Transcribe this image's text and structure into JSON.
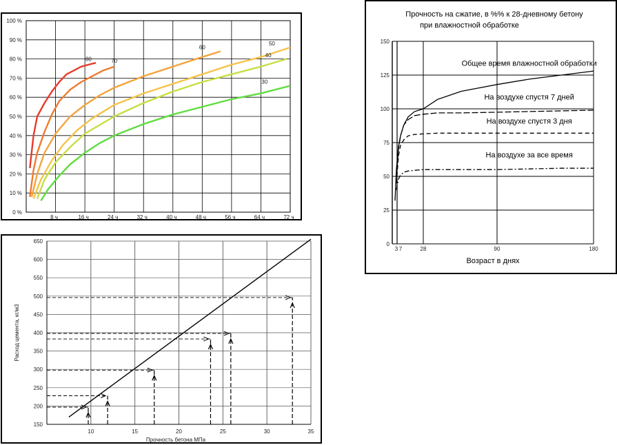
{
  "chart_data": [
    {
      "type": "line",
      "x_unit": "ч",
      "y_unit": "%",
      "xlim": [
        0,
        72
      ],
      "ylim": [
        0,
        100
      ],
      "y_ticks": [
        0,
        10,
        20,
        30,
        40,
        50,
        60,
        70,
        80,
        90,
        100
      ],
      "y_tick_labels": [
        "0 %",
        "10 %",
        "20 %",
        "30 %",
        "40 %",
        "50 %",
        "60 %",
        "70 %",
        "80 %",
        "90 %",
        "100 %"
      ],
      "x_ticks": [
        8,
        16,
        24,
        32,
        40,
        48,
        56,
        64,
        72
      ],
      "x_tick_labels": [
        "8 ч",
        "16 ч",
        "24 ч",
        "32 ч",
        "40 ч",
        "48 ч",
        "56 ч",
        "64 ч",
        "72 ч"
      ],
      "grid": true,
      "series": [
        {
          "name": "80",
          "color": "#e83a2a",
          "x": [
            1,
            2,
            3,
            5,
            7,
            9,
            11,
            13,
            15,
            17,
            19
          ],
          "y": [
            23,
            40,
            50,
            57,
            63,
            68,
            72,
            74,
            76,
            77,
            78
          ],
          "label_at": [
            17,
            79
          ]
        },
        {
          "name": "70",
          "color": "#ef7a30",
          "x": [
            1,
            2,
            3,
            5,
            7,
            9,
            12,
            15,
            18,
            21,
            24
          ],
          "y": [
            8,
            22,
            31,
            42,
            51,
            58,
            64,
            68,
            71,
            74,
            76
          ],
          "label_at": [
            24,
            78
          ]
        },
        {
          "name": "60",
          "color": "#f3a33b",
          "x": [
            1.5,
            3,
            5,
            8,
            12,
            16,
            20,
            24,
            32,
            40,
            48,
            53
          ],
          "y": [
            8,
            20,
            31,
            41,
            50,
            56,
            61,
            65,
            71,
            76,
            81,
            84
          ],
          "label_at": [
            48,
            85
          ]
        },
        {
          "name": "50",
          "color": "#f6c24a",
          "x": [
            2,
            4,
            7,
            10,
            14,
            18,
            24,
            32,
            40,
            48,
            56,
            64,
            72
          ],
          "y": [
            7,
            17,
            27,
            35,
            43,
            49,
            56,
            62,
            67,
            72,
            77,
            81,
            86
          ],
          "label_at": [
            67,
            87
          ]
        },
        {
          "name": "40",
          "color": "#c7de42",
          "x": [
            3,
            5,
            8,
            12,
            16,
            24,
            32,
            40,
            48,
            56,
            64,
            71
          ],
          "y": [
            7,
            17,
            26,
            34,
            41,
            50,
            57,
            63,
            68,
            72,
            76,
            80
          ],
          "label_at": [
            66,
            81
          ]
        },
        {
          "name": "30",
          "color": "#5edd3e",
          "x": [
            4,
            6,
            9,
            12,
            16,
            20,
            24,
            32,
            40,
            48,
            56,
            64,
            72
          ],
          "y": [
            6,
            12,
            19,
            25,
            31,
            36,
            40,
            46,
            51,
            55,
            59,
            62,
            66
          ],
          "label_at": [
            65,
            67
          ]
        }
      ]
    },
    {
      "type": "line",
      "title": "Прочность на сжатие, в %% к 28-дневному бетону\nпри влажностной обработке",
      "title_lines": [
        "Прочность на сжатие, в %% к 28-дневному бетону",
        "при влажностной обработке"
      ],
      "xlabel": "Возраст в днях",
      "x_ticks": [
        3,
        7,
        28,
        90,
        180
      ],
      "x_tick_labels": [
        "3",
        "7",
        "28",
        "90",
        "180"
      ],
      "y_ticks": [
        0,
        25,
        50,
        75,
        100,
        125,
        150
      ],
      "xlim": [
        0,
        180
      ],
      "ylim": [
        0,
        150
      ],
      "grid": true,
      "series": [
        {
          "name": "Общее время влажностной обработки",
          "dash": "solid",
          "x": [
            2,
            3,
            5,
            7,
            10,
            14,
            20,
            28,
            40,
            60,
            90,
            120,
            150,
            180
          ],
          "y": [
            32,
            55,
            72,
            80,
            88,
            94,
            98,
            100,
            107,
            113,
            118,
            122,
            125,
            128
          ],
          "label_pos": [
            120,
            132
          ]
        },
        {
          "name": "На воздухе спустя 7 дней",
          "dash": "long",
          "x": [
            3,
            5,
            7,
            10,
            14,
            20,
            28,
            40,
            60,
            90,
            120,
            150,
            180
          ],
          "y": [
            50,
            70,
            80,
            88,
            92,
            95,
            96,
            97,
            97,
            97.5,
            98,
            98.5,
            99
          ],
          "label_pos": [
            120,
            107
          ]
        },
        {
          "name": "На воздухе спустя 3 дня",
          "dash": "dash",
          "x": [
            3,
            5,
            7,
            10,
            14,
            20,
            28,
            40,
            60,
            90,
            120,
            150,
            180
          ],
          "y": [
            45,
            65,
            73,
            77,
            80,
            81,
            81.5,
            82,
            82,
            82,
            82,
            82,
            82
          ],
          "label_pos": [
            120,
            89
          ]
        },
        {
          "name": "На воздухе за все время",
          "dash": "dashdot",
          "x": [
            3,
            5,
            7,
            10,
            14,
            20,
            28,
            40,
            60,
            90,
            120,
            150,
            180
          ],
          "y": [
            40,
            48,
            51,
            53,
            54,
            54.5,
            55,
            55,
            55,
            55,
            55.5,
            56,
            56
          ],
          "label_pos": [
            120,
            64
          ]
        }
      ]
    },
    {
      "type": "line",
      "xlabel": "Прочность бетона  МПа",
      "ylabel": "Расход цемента, кг/м3",
      "xlim": [
        5,
        35
      ],
      "ylim": [
        150,
        650
      ],
      "x_ticks": [
        10,
        15,
        20,
        25,
        30,
        35
      ],
      "y_ticks": [
        150,
        200,
        250,
        300,
        350,
        400,
        450,
        500,
        550,
        600,
        650
      ],
      "grid": true,
      "series": [
        {
          "name": "",
          "x": [
            7.5,
            35
          ],
          "y": [
            170,
            655
          ]
        }
      ],
      "readouts": [
        {
          "x": 9.7,
          "y": 197
        },
        {
          "x": 11.9,
          "y": 228
        },
        {
          "x": 17.2,
          "y": 298
        },
        {
          "x": 23.6,
          "y": 383
        },
        {
          "x": 25.9,
          "y": 398
        },
        {
          "x": 32.9,
          "y": 496
        }
      ]
    }
  ]
}
